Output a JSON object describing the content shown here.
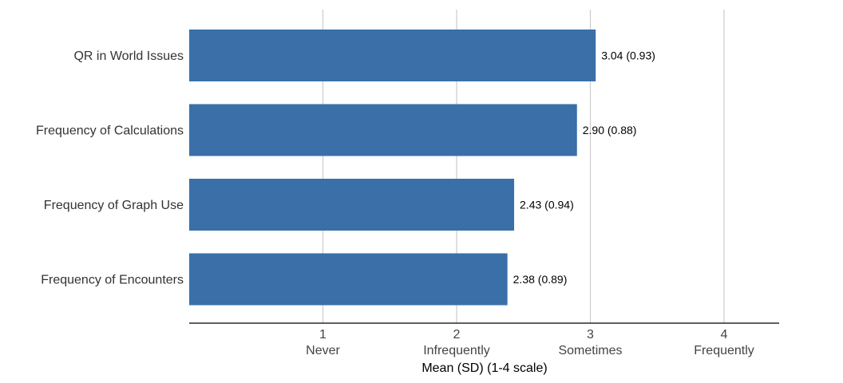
{
  "chart_data": {
    "type": "bar",
    "orientation": "horizontal",
    "categories": [
      "QR in World Issues",
      "Frequency of Calculations",
      "Frequency of Graph Use",
      "Frequency of Encounters"
    ],
    "values": [
      3.04,
      2.9,
      2.43,
      2.38
    ],
    "labels": [
      "3.04 (0.93)",
      "2.90 (0.88)",
      "2.43 (0.94)",
      "2.38 (0.89)"
    ],
    "xticks": [
      {
        "value": 1,
        "number": "1",
        "word": "Never"
      },
      {
        "value": 2,
        "number": "2",
        "word": "Infrequently"
      },
      {
        "value": 3,
        "number": "3",
        "word": "Sometimes"
      },
      {
        "value": 4,
        "number": "4",
        "word": "Frequently"
      }
    ],
    "xlabel": "Mean (SD) (1-4 scale)",
    "ylabel": "",
    "title": "",
    "xlim": [
      0,
      4.4
    ],
    "grid": "vertical",
    "bar_color": "#3a6fa8"
  }
}
